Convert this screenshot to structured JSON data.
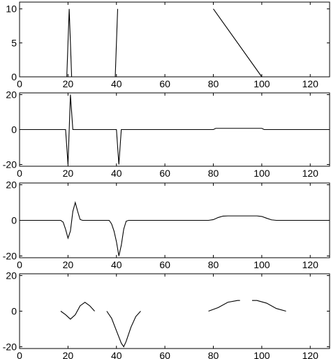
{
  "chart_data": [
    {
      "type": "line",
      "xlim": [
        0,
        128
      ],
      "ylim": [
        0,
        11
      ],
      "xticks": [
        0,
        20,
        40,
        60,
        80,
        100,
        120
      ],
      "yticks": [
        0,
        5,
        10
      ],
      "grid": false,
      "series": [
        {
          "segments": [
            [
              [
                18.5,
                0
              ],
              [
                19.5,
                0
              ],
              [
                20.5,
                10
              ],
              [
                21.5,
                0
              ],
              [
                22.5,
                0
              ]
            ],
            [
              [
                38.5,
                0
              ],
              [
                39.5,
                0
              ],
              [
                40.5,
                10
              ]
            ],
            [
              [
                80,
                10
              ],
              [
                100,
                0
              ]
            ]
          ]
        }
      ]
    },
    {
      "type": "line",
      "xlim": [
        0,
        128
      ],
      "ylim": [
        -21,
        21
      ],
      "xticks": [
        0,
        20,
        40,
        60,
        80,
        100,
        120
      ],
      "yticks": [
        -20,
        0,
        20
      ],
      "grid": false,
      "series": [
        {
          "segments": [
            [
              [
                0,
                0
              ],
              [
                19,
                0
              ],
              [
                20,
                -20
              ],
              [
                21,
                20
              ],
              [
                22,
                0
              ],
              [
                40,
                0
              ],
              [
                41,
                -20
              ],
              [
                42,
                0
              ],
              [
                80,
                0
              ],
              [
                81,
                0.7
              ],
              [
                100,
                0.7
              ],
              [
                101,
                0
              ],
              [
                128,
                0
              ]
            ]
          ]
        }
      ]
    },
    {
      "type": "line",
      "xlim": [
        0,
        128
      ],
      "ylim": [
        -21,
        21
      ],
      "xticks": [
        0,
        20,
        40,
        60,
        80,
        100,
        120
      ],
      "yticks": [
        -20,
        0,
        20
      ],
      "grid": false,
      "series": [
        {
          "segments": [
            [
              [
                0,
                0
              ],
              [
                17,
                0
              ],
              [
                18,
                -1
              ],
              [
                19,
                -5
              ],
              [
                20,
                -10
              ],
              [
                21,
                -6
              ],
              [
                22,
                5
              ],
              [
                23,
                10
              ],
              [
                24,
                5
              ],
              [
                25,
                0.5
              ],
              [
                26,
                0
              ],
              [
                37,
                0
              ],
              [
                38,
                -2
              ],
              [
                39,
                -6
              ],
              [
                40,
                -12
              ],
              [
                41,
                -20
              ],
              [
                42,
                -14
              ],
              [
                43,
                -5
              ],
              [
                44,
                -0.5
              ],
              [
                45,
                0
              ],
              [
                78,
                0
              ],
              [
                80,
                0.4
              ],
              [
                82,
                1.6
              ],
              [
                84,
                2.4
              ],
              [
                86,
                2.5
              ],
              [
                98,
                2.5
              ],
              [
                100,
                2.2
              ],
              [
                102,
                1.2
              ],
              [
                104,
                0.3
              ],
              [
                106,
                0
              ],
              [
                128,
                0
              ]
            ]
          ]
        }
      ]
    },
    {
      "type": "line",
      "xlim": [
        0,
        128
      ],
      "ylim": [
        -21,
        21
      ],
      "xticks": [
        0,
        20,
        40,
        60,
        80,
        100,
        120
      ],
      "yticks": [
        -20,
        0,
        20
      ],
      "grid": false,
      "series": [
        {
          "segments": [
            [
              [
                17,
                0
              ],
              [
                19,
                -2
              ],
              [
                21,
                -4.5
              ],
              [
                23,
                -2
              ],
              [
                25,
                3
              ],
              [
                27,
                5
              ],
              [
                29,
                3
              ],
              [
                31,
                0
              ]
            ],
            [
              [
                36,
                0
              ],
              [
                38,
                -4
              ],
              [
                40,
                -11
              ],
              [
                42,
                -18
              ],
              [
                43,
                -20
              ],
              [
                44,
                -17
              ],
              [
                46,
                -9
              ],
              [
                48,
                -3
              ],
              [
                50,
                0
              ]
            ],
            [
              [
                78,
                0
              ],
              [
                82,
                2
              ],
              [
                86,
                5
              ],
              [
                90,
                6
              ],
              [
                91,
                6
              ]
            ],
            [
              [
                96,
                6
              ],
              [
                98,
                6
              ],
              [
                102,
                4.5
              ],
              [
                106,
                1.5
              ],
              [
                110,
                0
              ]
            ],
            [
              [
                0,
                -21
              ],
              [
                30,
                -21
              ]
            ],
            [
              [
                34,
                -21
              ],
              [
                52,
                -21
              ]
            ],
            [
              [
                57,
                -21
              ],
              [
                75,
                -21
              ]
            ],
            [
              [
                77,
                -21
              ],
              [
                113,
                -21
              ]
            ]
          ]
        }
      ]
    }
  ]
}
